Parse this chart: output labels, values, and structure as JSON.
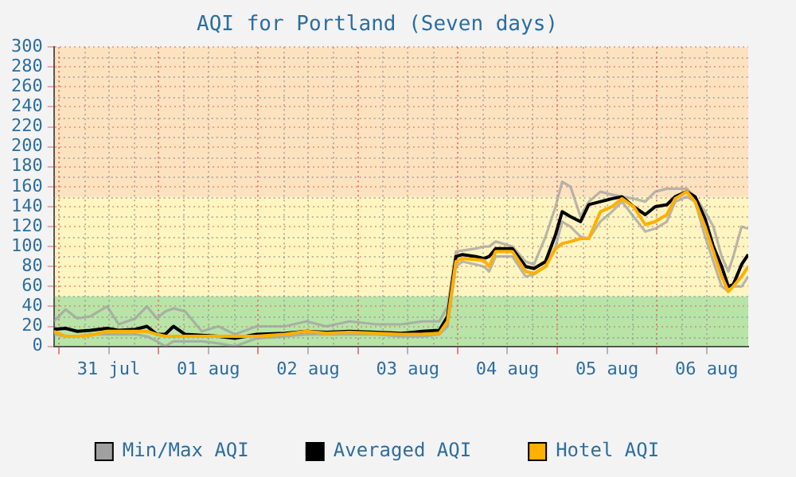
{
  "chart_data": {
    "type": "line",
    "title": "AQI for Portland (Seven days)",
    "x": [
      "--07-30T22:48",
      "--07-31T01:36",
      "--07-31T04:24",
      "--07-31T07:36",
      "--07-31T11:36",
      "--07-31T14:24",
      "--07-31T18:24",
      "--07-31T21:12",
      "--07-31T23:36",
      "--08-01T01:36",
      "--08-01T03:36",
      "--08-01T06:24",
      "--08-01T10:24",
      "--08-01T14:24",
      "--08-01T18:24",
      "--08-01T23:36",
      "--08-02T06:24",
      "--08-02T11:36",
      "--08-02T16:24",
      "--08-02T22:00",
      "--08-03T04:24",
      "--08-03T10:24",
      "--08-03T15:36",
      "--08-03T19:36",
      "--08-03T21:36",
      "--08-03T23:36",
      "--08-04T01:12",
      "--08-04T04:24",
      "--08-04T06:24",
      "--08-04T07:36",
      "--08-04T09:12",
      "--08-04T13:12",
      "--08-04T16:24",
      "--08-04T18:24",
      "--08-04T21:12",
      "--08-04T23:36",
      "--08-05T01:12",
      "--08-05T03:12",
      "--08-05T05:36",
      "--08-05T07:36",
      "--08-05T10:24",
      "--08-05T13:12",
      "--08-05T15:36",
      "--08-05T18:24",
      "--08-05T21:12",
      "--08-05T23:36",
      "--08-06T02:24",
      "--08-06T04:24",
      "--08-06T07:12",
      "--08-06T09:12",
      "--08-06T11:36",
      "--08-06T13:36",
      "--08-06T15:36",
      "--08-06T17:12",
      "--08-06T18:24",
      "--08-06T20:24",
      "--08-06T22:00"
    ],
    "series": [
      {
        "name": "Min/Max AQI",
        "color": "#a0a0a0",
        "values": [
          25,
          37,
          28,
          30,
          40,
          22,
          28,
          40,
          28,
          35,
          38,
          35,
          15,
          20,
          12,
          20,
          20,
          25,
          20,
          25,
          22,
          22,
          25,
          25,
          40,
          95,
          96,
          98,
          100,
          100,
          105,
          100,
          85,
          82,
          110,
          140,
          165,
          160,
          130,
          145,
          155,
          152,
          150,
          148,
          145,
          155,
          158,
          158,
          158,
          150,
          135,
          120,
          90,
          75,
          90,
          120,
          118
        ]
      },
      {
        "color": "#a0a0a0",
        "values": [
          12,
          10,
          10,
          12,
          12,
          12,
          12,
          10,
          5,
          0,
          5,
          5,
          5,
          3,
          0,
          8,
          10,
          12,
          12,
          12,
          12,
          10,
          10,
          12,
          20,
          80,
          85,
          82,
          80,
          75,
          90,
          90,
          70,
          72,
          80,
          100,
          125,
          120,
          110,
          108,
          125,
          135,
          145,
          130,
          115,
          118,
          125,
          145,
          150,
          145,
          110,
          85,
          60,
          55,
          60,
          60,
          70
        ]
      },
      {
        "name": "Averaged AQI",
        "color": "#000000",
        "values": [
          17,
          18,
          15,
          16,
          18,
          16,
          17,
          20,
          12,
          12,
          20,
          12,
          11,
          10,
          8,
          12,
          13,
          15,
          14,
          15,
          14,
          13,
          15,
          16,
          30,
          90,
          92,
          90,
          88,
          90,
          98,
          98,
          80,
          78,
          85,
          112,
          135,
          130,
          125,
          142,
          145,
          148,
          150,
          140,
          132,
          140,
          142,
          150,
          155,
          150,
          128,
          100,
          80,
          60,
          62,
          82,
          92
        ]
      },
      {
        "name": "Hotel AQI",
        "color": "#ffb000",
        "values": [
          15,
          10,
          10,
          11,
          15,
          15,
          15,
          15,
          12,
          10,
          10,
          10,
          10,
          10,
          10,
          10,
          12,
          15,
          13,
          14,
          13,
          12,
          12,
          13,
          25,
          85,
          88,
          87,
          86,
          80,
          95,
          95,
          75,
          73,
          80,
          98,
          103,
          105,
          108,
          108,
          135,
          140,
          148,
          140,
          122,
          125,
          132,
          148,
          155,
          145,
          120,
          95,
          70,
          55,
          60,
          70,
          80
        ]
      }
    ],
    "xlim": [
      "--07-30T22:48",
      "--08-06T22:00"
    ],
    "xticks": [
      {
        "value": "--07-31T00:00",
        "label": null
      },
      {
        "value": "--08-01T00:00",
        "label": null
      },
      {
        "value": "--08-02T00:00",
        "label": null
      },
      {
        "value": "--08-03T00:00",
        "label": null
      },
      {
        "value": "--08-04T00:00",
        "label": null
      },
      {
        "value": "--08-05T00:00",
        "label": null
      },
      {
        "value": "--08-06T00:00",
        "label": null
      },
      {
        "value": "--07-31T12:00",
        "label": "31 jul"
      },
      {
        "value": "--08-01T12:00",
        "label": "01 aug"
      },
      {
        "value": "--08-02T12:00",
        "label": "02 aug"
      },
      {
        "value": "--08-03T12:00",
        "label": "03 aug"
      },
      {
        "value": "--08-04T12:00",
        "label": "04 aug"
      },
      {
        "value": "--08-05T12:00",
        "label": "05 aug"
      },
      {
        "value": "--08-06T12:00",
        "label": "06 aug"
      }
    ],
    "ylim": [
      0,
      300
    ],
    "yticks": [
      0,
      20,
      40,
      60,
      80,
      100,
      120,
      140,
      160,
      180,
      200,
      220,
      240,
      260,
      280,
      300
    ],
    "bands": [
      {
        "axis": "y",
        "from": 0,
        "to": 50,
        "color": "#b8e4a8"
      },
      {
        "axis": "y",
        "from": 50,
        "to": 150,
        "color": "#fff5c0"
      },
      {
        "axis": "y",
        "from": 150,
        "to": 300,
        "color": "#fde2c0"
      }
    ],
    "grid": true,
    "legend": "bottom",
    "marker": "none",
    "line_style": "solid"
  }
}
